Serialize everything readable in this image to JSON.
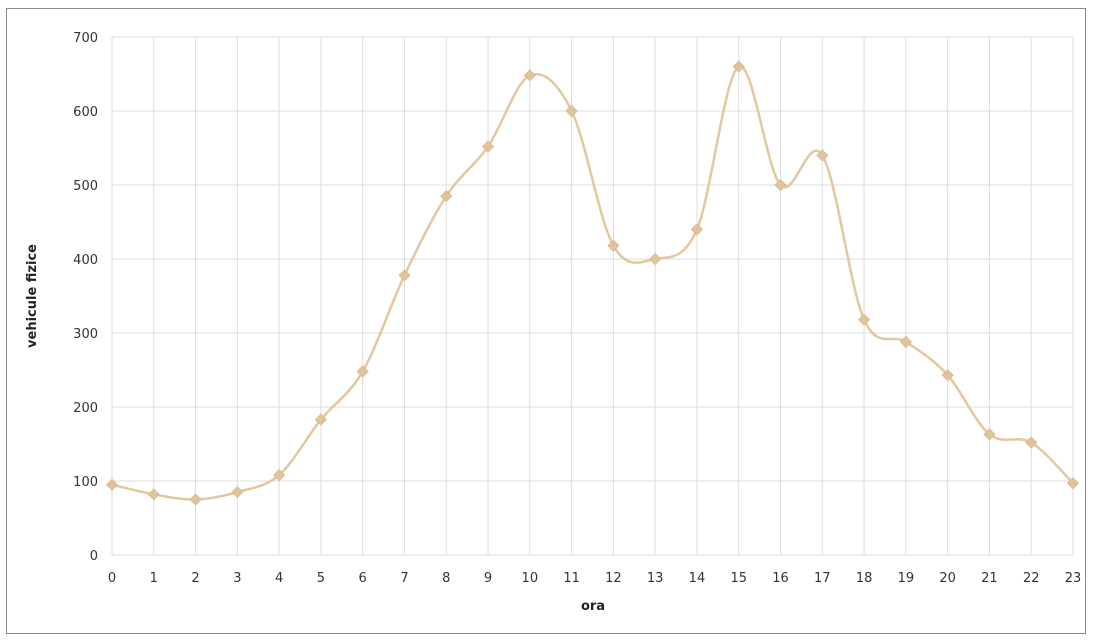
{
  "chart_data": {
    "type": "line",
    "title": "",
    "xlabel": "ora",
    "ylabel": "vehicule fizice",
    "x": [
      0,
      1,
      2,
      3,
      4,
      5,
      6,
      7,
      8,
      9,
      10,
      11,
      12,
      13,
      14,
      15,
      16,
      17,
      18,
      19,
      20,
      21,
      22,
      23
    ],
    "series": [
      {
        "values": [
          95,
          82,
          75,
          85,
          108,
          183,
          248,
          378,
          485,
          552,
          648,
          600,
          418,
          400,
          440,
          660,
          500,
          540,
          318,
          288,
          243,
          163,
          152,
          97
        ]
      }
    ],
    "xlim": [
      0,
      23
    ],
    "ylim": [
      0,
      700
    ],
    "y_ticks": [
      0,
      100,
      200,
      300,
      400,
      500,
      600,
      700
    ],
    "x_ticks": [
      0,
      1,
      2,
      3,
      4,
      5,
      6,
      7,
      8,
      9,
      10,
      11,
      12,
      13,
      14,
      15,
      16,
      17,
      18,
      19,
      20,
      21,
      22,
      23
    ],
    "grid": true,
    "smoothed": true,
    "colors": {
      "line": "#e2c7a0",
      "marker": "#e0c39a",
      "grid": "#dcdcdc"
    }
  }
}
